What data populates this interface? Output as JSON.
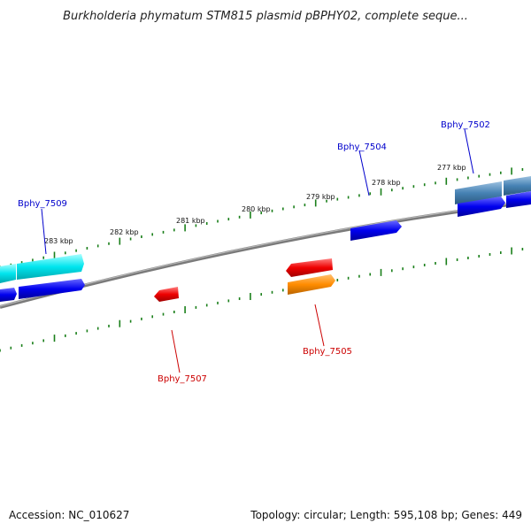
{
  "title": "Burkholderia phymatum STM815 plasmid pBPHY02, complete seque...",
  "footer": {
    "accession": "Accession: NC_010627",
    "topology": "Topology: circular; Length: 595,108 bp; Genes: 449"
  },
  "colors": {
    "backbone": "#888888",
    "tick": "#1a7f1a",
    "forward_label": "#0000cc",
    "reverse_label": "#cc0000"
  },
  "ticks": [
    {
      "label": "283 kbp"
    },
    {
      "label": "282 kbp"
    },
    {
      "label": "281 kbp"
    },
    {
      "label": "280 kbp"
    },
    {
      "label": "279 kbp"
    },
    {
      "label": "278 kbp"
    },
    {
      "label": "277 kbp"
    }
  ],
  "genes": [
    {
      "name": "Bphy_7509",
      "strand": "forward",
      "color": "#00e5ee"
    },
    {
      "name": "Bphy_7504",
      "strand": "forward",
      "color": "#0000ee"
    },
    {
      "name": "Bphy_7502",
      "strand": "forward",
      "color": "#4682b4"
    },
    {
      "name": "Bphy_7507",
      "strand": "reverse",
      "color": "#ee0000"
    },
    {
      "name": "Bphy_7505",
      "strand": "reverse",
      "color": "#ff8c00"
    }
  ]
}
